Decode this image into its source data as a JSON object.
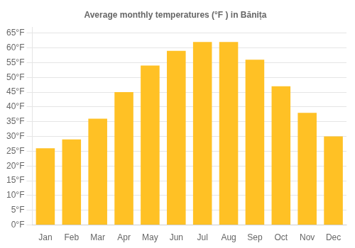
{
  "chart_data": {
    "type": "bar",
    "title": "Average monthly temperatures (°F ) in Bănița",
    "categories": [
      "Jan",
      "Feb",
      "Mar",
      "Apr",
      "May",
      "Jun",
      "Jul",
      "Aug",
      "Sep",
      "Oct",
      "Nov",
      "Dec"
    ],
    "values": [
      26,
      29,
      36,
      45,
      54,
      59,
      62,
      62,
      56,
      47,
      38,
      30
    ],
    "color": "#FFC125",
    "ylim": [
      0,
      67
    ],
    "yticks": [
      {
        "value": 0,
        "label": "0°F"
      },
      {
        "value": 5,
        "label": "5°F"
      },
      {
        "value": 10,
        "label": "10°F"
      },
      {
        "value": 15,
        "label": "15°F"
      },
      {
        "value": 20,
        "label": "20°F"
      },
      {
        "value": 25,
        "label": "25°F"
      },
      {
        "value": 30,
        "label": "30°F"
      },
      {
        "value": 35,
        "label": "35°F"
      },
      {
        "value": 40,
        "label": "40°F"
      },
      {
        "value": 45,
        "label": "45°F"
      },
      {
        "value": 50,
        "label": "50°F"
      },
      {
        "value": 55,
        "label": "55°F"
      },
      {
        "value": 60,
        "label": "60°F"
      },
      {
        "value": 65,
        "label": "65°F"
      }
    ],
    "grid": true
  }
}
